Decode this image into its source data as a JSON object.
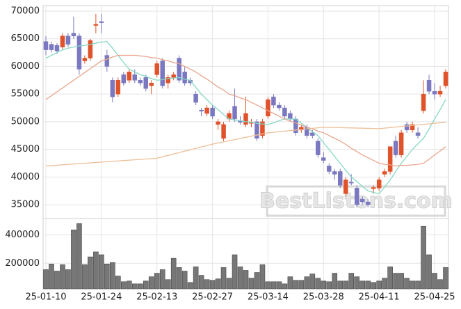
{
  "chart_data": [
    {
      "type": "candlestick",
      "watermark": "BestListons.com",
      "categories": [
        "25-01-10",
        null,
        null,
        null,
        null,
        null,
        null,
        null,
        null,
        null,
        "25-01-24",
        null,
        null,
        null,
        null,
        null,
        null,
        null,
        null,
        null,
        "25-02-13",
        null,
        null,
        null,
        null,
        null,
        null,
        null,
        null,
        null,
        "25-02-27",
        null,
        null,
        null,
        null,
        null,
        null,
        null,
        null,
        null,
        "25-03-14",
        null,
        null,
        null,
        null,
        null,
        null,
        null,
        null,
        null,
        "25-03-28",
        null,
        null,
        null,
        null,
        null,
        null,
        null,
        null,
        null,
        "25-04-11",
        null,
        null,
        null,
        null,
        null,
        null,
        null,
        null,
        null,
        "25-04-25",
        null,
        null
      ],
      "open": [
        64500,
        64000,
        63800,
        63500,
        65500,
        66000,
        65500,
        61000,
        61500,
        67400,
        68100,
        62000,
        57500,
        55000,
        58500,
        57500,
        58500,
        57500,
        58000,
        56500,
        58500,
        61000,
        57000,
        58000,
        61500,
        59000,
        57500,
        55000,
        52100,
        51500,
        52500,
        49500,
        47000,
        50500,
        52800,
        50100,
        49500,
        49700,
        50000,
        47500,
        51000,
        54500,
        53000,
        52500,
        51500,
        50500,
        48500,
        49000,
        48000,
        46500,
        43500,
        42000,
        41000,
        41000,
        37000,
        39100,
        38000,
        36000,
        35500,
        37900,
        38000,
        40500,
        41000,
        46500,
        44000,
        49500,
        48500,
        48000,
        52000,
        57500,
        55500,
        55000,
        56500
      ],
      "high": [
        65500,
        64500,
        64200,
        66000,
        66000,
        69000,
        66000,
        62000,
        65000,
        69500,
        69500,
        63000,
        58000,
        58000,
        59000,
        59500,
        59500,
        58000,
        58500,
        57500,
        61000,
        61500,
        58500,
        59000,
        62000,
        60000,
        58000,
        55500,
        52500,
        53000,
        53000,
        50500,
        50000,
        52000,
        56000,
        51000,
        54500,
        50500,
        50500,
        50500,
        54500,
        55000,
        53500,
        53000,
        52000,
        51000,
        49500,
        49500,
        48500,
        47000,
        44500,
        42500,
        41500,
        41500,
        40000,
        40500,
        38500,
        36500,
        36000,
        38500,
        40000,
        41500,
        45500,
        47500,
        48500,
        50000,
        50000,
        49000,
        57500,
        58500,
        57000,
        56500,
        59500
      ],
      "low": [
        62000,
        62500,
        62300,
        63000,
        63500,
        65000,
        58500,
        60500,
        61000,
        66000,
        66000,
        59000,
        53500,
        54500,
        56500,
        57000,
        57000,
        56500,
        55500,
        55000,
        58000,
        56000,
        56000,
        57500,
        57000,
        56500,
        56500,
        53000,
        51000,
        51000,
        50500,
        48500,
        46500,
        50000,
        50000,
        49500,
        49000,
        49000,
        46500,
        47000,
        50500,
        52500,
        52000,
        50500,
        50000,
        47500,
        48000,
        47000,
        47000,
        43500,
        42500,
        40500,
        39500,
        38000,
        36500,
        38500,
        34500,
        35000,
        34500,
        37000,
        37500,
        40000,
        40500,
        43500,
        43500,
        48000,
        48000,
        47000,
        51500,
        55000,
        54000,
        54500,
        56000
      ],
      "close": [
        63000,
        63000,
        62800,
        65500,
        64000,
        65500,
        59500,
        61500,
        64700,
        67600,
        67900,
        60000,
        54500,
        57500,
        57000,
        59000,
        57500,
        57000,
        56000,
        57000,
        60500,
        56500,
        58000,
        58500,
        57500,
        57000,
        57000,
        53500,
        51900,
        52500,
        51000,
        50000,
        49500,
        51500,
        50500,
        49900,
        51500,
        49900,
        47000,
        50000,
        54000,
        53000,
        52500,
        51000,
        50500,
        48000,
        49000,
        47500,
        47500,
        44000,
        43000,
        41000,
        40500,
        38500,
        39500,
        38900,
        35000,
        35500,
        35000,
        38100,
        39500,
        41000,
        45500,
        44000,
        48000,
        48500,
        49500,
        47500,
        55000,
        55500,
        55000,
        55500,
        59000
      ],
      "up_color": "#e0522a",
      "down_color": "#7a78c0",
      "lines": [
        {
          "color": "#86d8c4",
          "values": [
            61500,
            62000,
            62500,
            63000,
            63300,
            63500,
            63700,
            63800,
            64000,
            64200,
            64400,
            64500,
            63300,
            62000,
            60700,
            59500,
            59000,
            58500,
            58200,
            57800,
            57500,
            57600,
            57800,
            57900,
            58000,
            57700,
            57500,
            56200,
            55000,
            54000,
            53000,
            52200,
            51300,
            50500,
            50300,
            50200,
            50000,
            49900,
            49700,
            49600,
            49500,
            49800,
            50200,
            50500,
            50500,
            50500,
            49700,
            49000,
            48200,
            47500,
            46200,
            45000,
            43700,
            42500,
            41200,
            40000,
            39200,
            38300,
            37500,
            37200,
            37000,
            38200,
            39500,
            41000,
            42500,
            43700,
            45000,
            46000,
            47000,
            48700,
            50500,
            52200,
            54000
          ]
        },
        {
          "color": "#e9a48c",
          "values": [
            54000,
            54700,
            55400,
            56100,
            56800,
            57500,
            58200,
            58900,
            59600,
            60300,
            61000,
            61300,
            61700,
            62000,
            62000,
            62000,
            62000,
            61900,
            61800,
            61600,
            61500,
            61200,
            61000,
            60700,
            60500,
            60000,
            59500,
            59000,
            58300,
            57700,
            57000,
            56300,
            55700,
            55000,
            54700,
            54300,
            54000,
            53500,
            53000,
            52500,
            52000,
            51500,
            51000,
            50500,
            50100,
            49800,
            49400,
            49000,
            48700,
            48300,
            48000,
            47500,
            47000,
            46500,
            45900,
            45200,
            44600,
            44000,
            43500,
            43000,
            42500,
            42300,
            42200,
            42000,
            42100,
            42100,
            42200,
            42300,
            42500,
            43200,
            44000,
            44700,
            45500
          ]
        },
        {
          "color": "#eebf98",
          "values": [
            42000,
            42070,
            42140,
            42210,
            42280,
            42350,
            42420,
            42490,
            42560,
            42630,
            42700,
            42770,
            42840,
            42910,
            42980,
            43050,
            43120,
            43190,
            43260,
            43330,
            43400,
            43660,
            43910,
            44170,
            44420,
            44680,
            44930,
            45190,
            45440,
            45700,
            45950,
            46160,
            46360,
            46570,
            46770,
            46980,
            47180,
            47390,
            47590,
            47800,
            48000,
            48100,
            48200,
            48300,
            48400,
            48500,
            48600,
            48700,
            48800,
            48900,
            49000,
            48980,
            48950,
            48930,
            48900,
            48880,
            48850,
            48830,
            48800,
            48780,
            48750,
            48850,
            48940,
            49040,
            49130,
            49230,
            49330,
            49420,
            49520,
            49610,
            49710,
            49800,
            49900
          ]
        }
      ],
      "ylim": [
        32500,
        71000
      ],
      "yticks": [
        35000,
        40000,
        45000,
        50000,
        55000,
        60000,
        65000,
        70000
      ],
      "grid": true
    },
    {
      "type": "bar",
      "values": [
        155000,
        195000,
        145000,
        190000,
        155000,
        435000,
        480000,
        190000,
        245000,
        280000,
        260000,
        195000,
        205000,
        110000,
        70000,
        75000,
        55000,
        55000,
        75000,
        105000,
        130000,
        155000,
        85000,
        235000,
        170000,
        145000,
        65000,
        175000,
        115000,
        85000,
        80000,
        90000,
        170000,
        95000,
        260000,
        175000,
        150000,
        95000,
        135000,
        190000,
        70000,
        70000,
        70000,
        55000,
        105000,
        80000,
        80000,
        105000,
        125000,
        95000,
        75000,
        70000,
        130000,
        75000,
        75000,
        130000,
        105000,
        75000,
        75000,
        65000,
        75000,
        95000,
        175000,
        130000,
        130000,
        95000,
        75000,
        75000,
        460000,
        260000,
        130000,
        85000,
        170000
      ],
      "color": "#777777",
      "ylim": [
        20000,
        515000
      ],
      "yticks": [
        200000,
        400000
      ],
      "grid": true
    }
  ]
}
